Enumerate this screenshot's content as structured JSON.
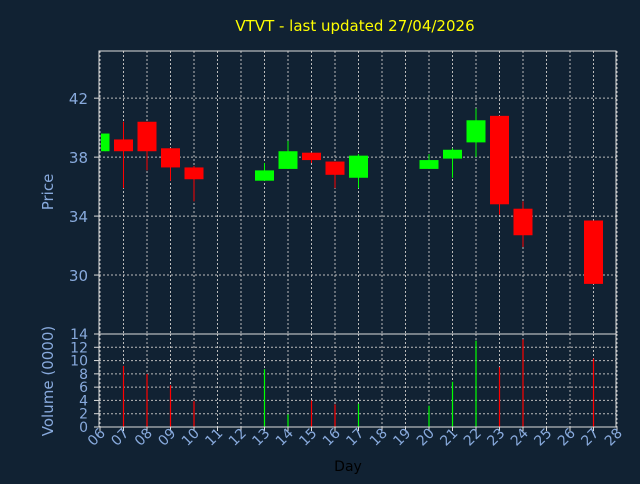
{
  "chart_data": [
    {
      "type": "candlestick",
      "title": "VTVT - last updated 27/04/2026",
      "ylabel": "Price",
      "xlabel": "",
      "ylim": [
        26.0,
        45.2
      ],
      "yticks": [
        30,
        34,
        38,
        42
      ],
      "grid": true,
      "colors": {
        "up": "#00ff00",
        "down": "#ff0000",
        "title": "#ffff00",
        "text": "#88aadd",
        "frame": "#dddddd",
        "grid": "#bbbbbb"
      },
      "candles": [
        {
          "day": "06",
          "open": 38.4,
          "high": 39.6,
          "low": 38.4,
          "close": 39.6
        },
        {
          "day": "07",
          "open": 39.2,
          "high": 40.4,
          "low": 35.9,
          "close": 38.4
        },
        {
          "day": "08",
          "open": 40.4,
          "high": 40.4,
          "low": 37.1,
          "close": 38.4
        },
        {
          "day": "09",
          "open": 38.6,
          "high": 38.6,
          "low": 36.4,
          "close": 37.3
        },
        {
          "day": "10",
          "open": 37.3,
          "high": 37.4,
          "low": 35.0,
          "close": 36.5
        },
        {
          "day": "13",
          "open": 36.4,
          "high": 37.6,
          "low": 36.4,
          "close": 37.1
        },
        {
          "day": "14",
          "open": 37.2,
          "high": 39.1,
          "low": 37.2,
          "close": 38.4
        },
        {
          "day": "15",
          "open": 38.3,
          "high": 38.3,
          "low": 37.6,
          "close": 37.8
        },
        {
          "day": "16",
          "open": 37.7,
          "high": 37.7,
          "low": 35.9,
          "close": 36.8
        },
        {
          "day": "17",
          "open": 36.6,
          "high": 38.2,
          "low": 35.9,
          "close": 38.1
        },
        {
          "day": "20",
          "open": 37.2,
          "high": 38.2,
          "low": 37.2,
          "close": 37.8
        },
        {
          "day": "21",
          "open": 37.9,
          "high": 38.6,
          "low": 36.6,
          "close": 38.5
        },
        {
          "day": "22",
          "open": 39.0,
          "high": 41.3,
          "low": 38.0,
          "close": 40.5
        },
        {
          "day": "23",
          "open": 40.8,
          "high": 40.8,
          "low": 34.1,
          "close": 34.8
        },
        {
          "day": "24",
          "open": 34.5,
          "high": 35.0,
          "low": 31.9,
          "close": 32.7
        },
        {
          "day": "27",
          "open": 33.7,
          "high": 33.7,
          "low": 29.4,
          "close": 29.4
        }
      ]
    },
    {
      "type": "bar",
      "ylabel": "Volume (0000)",
      "xlabel": "Day",
      "ylim": [
        0,
        14
      ],
      "yticks": [
        0,
        2,
        4,
        6,
        8,
        10,
        12,
        14
      ],
      "grid": true,
      "categories": [
        "06",
        "07",
        "08",
        "09",
        "10",
        "11",
        "12",
        "13",
        "14",
        "15",
        "16",
        "17",
        "18",
        "19",
        "20",
        "21",
        "22",
        "23",
        "24",
        "25",
        "26",
        "27",
        "28"
      ],
      "bars": [
        {
          "day": "07",
          "value": 9.2,
          "direction": "down"
        },
        {
          "day": "08",
          "value": 8.0,
          "direction": "down"
        },
        {
          "day": "09",
          "value": 6.3,
          "direction": "down"
        },
        {
          "day": "10",
          "value": 3.9,
          "direction": "down"
        },
        {
          "day": "13",
          "value": 8.7,
          "direction": "up"
        },
        {
          "day": "14",
          "value": 1.9,
          "direction": "up"
        },
        {
          "day": "15",
          "value": 4.0,
          "direction": "down"
        },
        {
          "day": "16",
          "value": 3.4,
          "direction": "down"
        },
        {
          "day": "17",
          "value": 3.5,
          "direction": "up"
        },
        {
          "day": "20",
          "value": 3.2,
          "direction": "up"
        },
        {
          "day": "21",
          "value": 6.8,
          "direction": "up"
        },
        {
          "day": "22",
          "value": 13.0,
          "direction": "up"
        },
        {
          "day": "23",
          "value": 9.0,
          "direction": "down"
        },
        {
          "day": "24",
          "value": 13.2,
          "direction": "down"
        },
        {
          "day": "27",
          "value": 10.3,
          "direction": "down"
        }
      ]
    }
  ]
}
